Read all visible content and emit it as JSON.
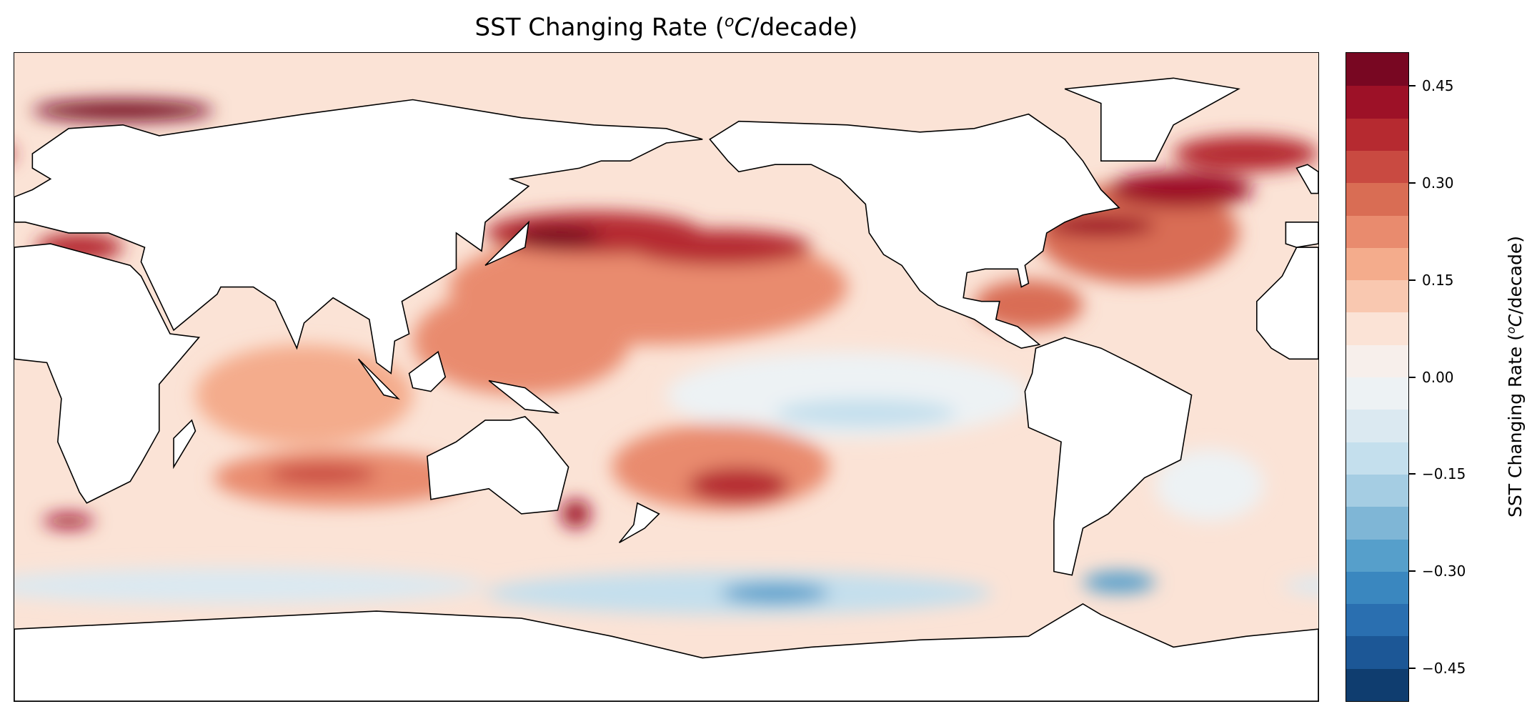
{
  "chart_data": {
    "type": "heatmap",
    "subtype": "filled-contour world map",
    "projection": "plate carree, central longitude 180",
    "title": {
      "prefix": "SST Changing Rate (",
      "sup": "o",
      "unit": "C",
      "suffix": "/decade)"
    },
    "colorbar": {
      "label": {
        "prefix": "SST Changing Rate (",
        "sup": "o",
        "unit": "C",
        "suffix": "/decade)"
      },
      "range": [
        -0.5,
        0.5
      ],
      "level_step": 0.05,
      "ticks": [
        0.45,
        0.3,
        0.15,
        0.0,
        -0.15,
        -0.3,
        -0.45
      ],
      "tick_labels": [
        "0.45",
        "0.30",
        "0.15",
        "0.00",
        "−0.15",
        "−0.30",
        "−0.45"
      ],
      "colormap": "RdBu_r",
      "colors": [
        "#0f3d6f",
        "#1c5796",
        "#2a6fb0",
        "#3a87bf",
        "#569fcb",
        "#7fb6d6",
        "#a5cde3",
        "#c4dfed",
        "#dbe9f1",
        "#edf2f4",
        "#f7efeb",
        "#fbe3d6",
        "#f9c8b0",
        "#f4ac8c",
        "#e98b6e",
        "#d96d54",
        "#c94a41",
        "#b62a30",
        "#9d1127",
        "#780722"
      ]
    },
    "background_value": 0.07,
    "land_color": "#ffffff",
    "coastline_color": "#000000",
    "features": [
      {
        "lon": 175,
        "lat": 25,
        "rx": 55,
        "ry": 16,
        "value": 0.2
      },
      {
        "lon": 140,
        "lat": 10,
        "rx": 30,
        "ry": 15,
        "value": 0.2
      },
      {
        "lon": 80,
        "lat": -5,
        "rx": 30,
        "ry": 14,
        "value": 0.15
      },
      {
        "lon": 90,
        "lat": -28,
        "rx": 35,
        "ry": 8,
        "value": 0.2
      },
      {
        "lon": 85,
        "lat": -27,
        "rx": 15,
        "ry": 3,
        "value": 0.3
      },
      {
        "lon": 230,
        "lat": -5,
        "rx": 50,
        "ry": 12,
        "value": -0.05
      },
      {
        "lon": 235,
        "lat": -10,
        "rx": 25,
        "ry": 4,
        "value": -0.12
      },
      {
        "lon": 195,
        "lat": -25,
        "rx": 30,
        "ry": 12,
        "value": 0.2
      },
      {
        "lon": 200,
        "lat": -30,
        "rx": 14,
        "ry": 5,
        "value": 0.35
      },
      {
        "lon": 160,
        "lat": 40,
        "rx": 30,
        "ry": 6,
        "value": 0.35
      },
      {
        "lon": 195,
        "lat": 36,
        "rx": 25,
        "ry": 5,
        "value": 0.35
      },
      {
        "lon": 150,
        "lat": 39,
        "rx": 12,
        "ry": 3,
        "value": 0.45
      },
      {
        "lon": 200,
        "lat": -60,
        "rx": 70,
        "ry": 6,
        "value": -0.12
      },
      {
        "lon": 210,
        "lat": -60,
        "rx": 15,
        "ry": 3,
        "value": -0.3
      },
      {
        "lon": 305,
        "lat": -57,
        "rx": 10,
        "ry": 3,
        "value": -0.3
      },
      {
        "lon": 60,
        "lat": -58,
        "rx": 70,
        "ry": 5,
        "value": -0.1
      },
      {
        "lon": 310,
        "lat": 40,
        "rx": 28,
        "ry": 14,
        "value": 0.25
      },
      {
        "lon": 300,
        "lat": 42,
        "rx": 15,
        "ry": 3,
        "value": 0.4
      },
      {
        "lon": 322,
        "lat": 52,
        "rx": 20,
        "ry": 5,
        "value": 0.4
      },
      {
        "lon": 340,
        "lat": 62,
        "rx": 20,
        "ry": 5,
        "value": 0.35
      },
      {
        "lon": 30,
        "lat": 74,
        "rx": 25,
        "ry": 3,
        "value": 0.45
      },
      {
        "lon": 18,
        "lat": 36,
        "rx": 12,
        "ry": 4,
        "value": 0.35
      },
      {
        "lon": 155,
        "lat": -38,
        "rx": 4,
        "ry": 4,
        "value": 0.4
      },
      {
        "lon": 15,
        "lat": -40,
        "rx": 7,
        "ry": 2,
        "value": 0.4
      },
      {
        "lon": 280,
        "lat": 20,
        "rx": 15,
        "ry": 7,
        "value": 0.25
      },
      {
        "lon": 330,
        "lat": -30,
        "rx": 15,
        "ry": 10,
        "value": -0.05
      }
    ]
  }
}
